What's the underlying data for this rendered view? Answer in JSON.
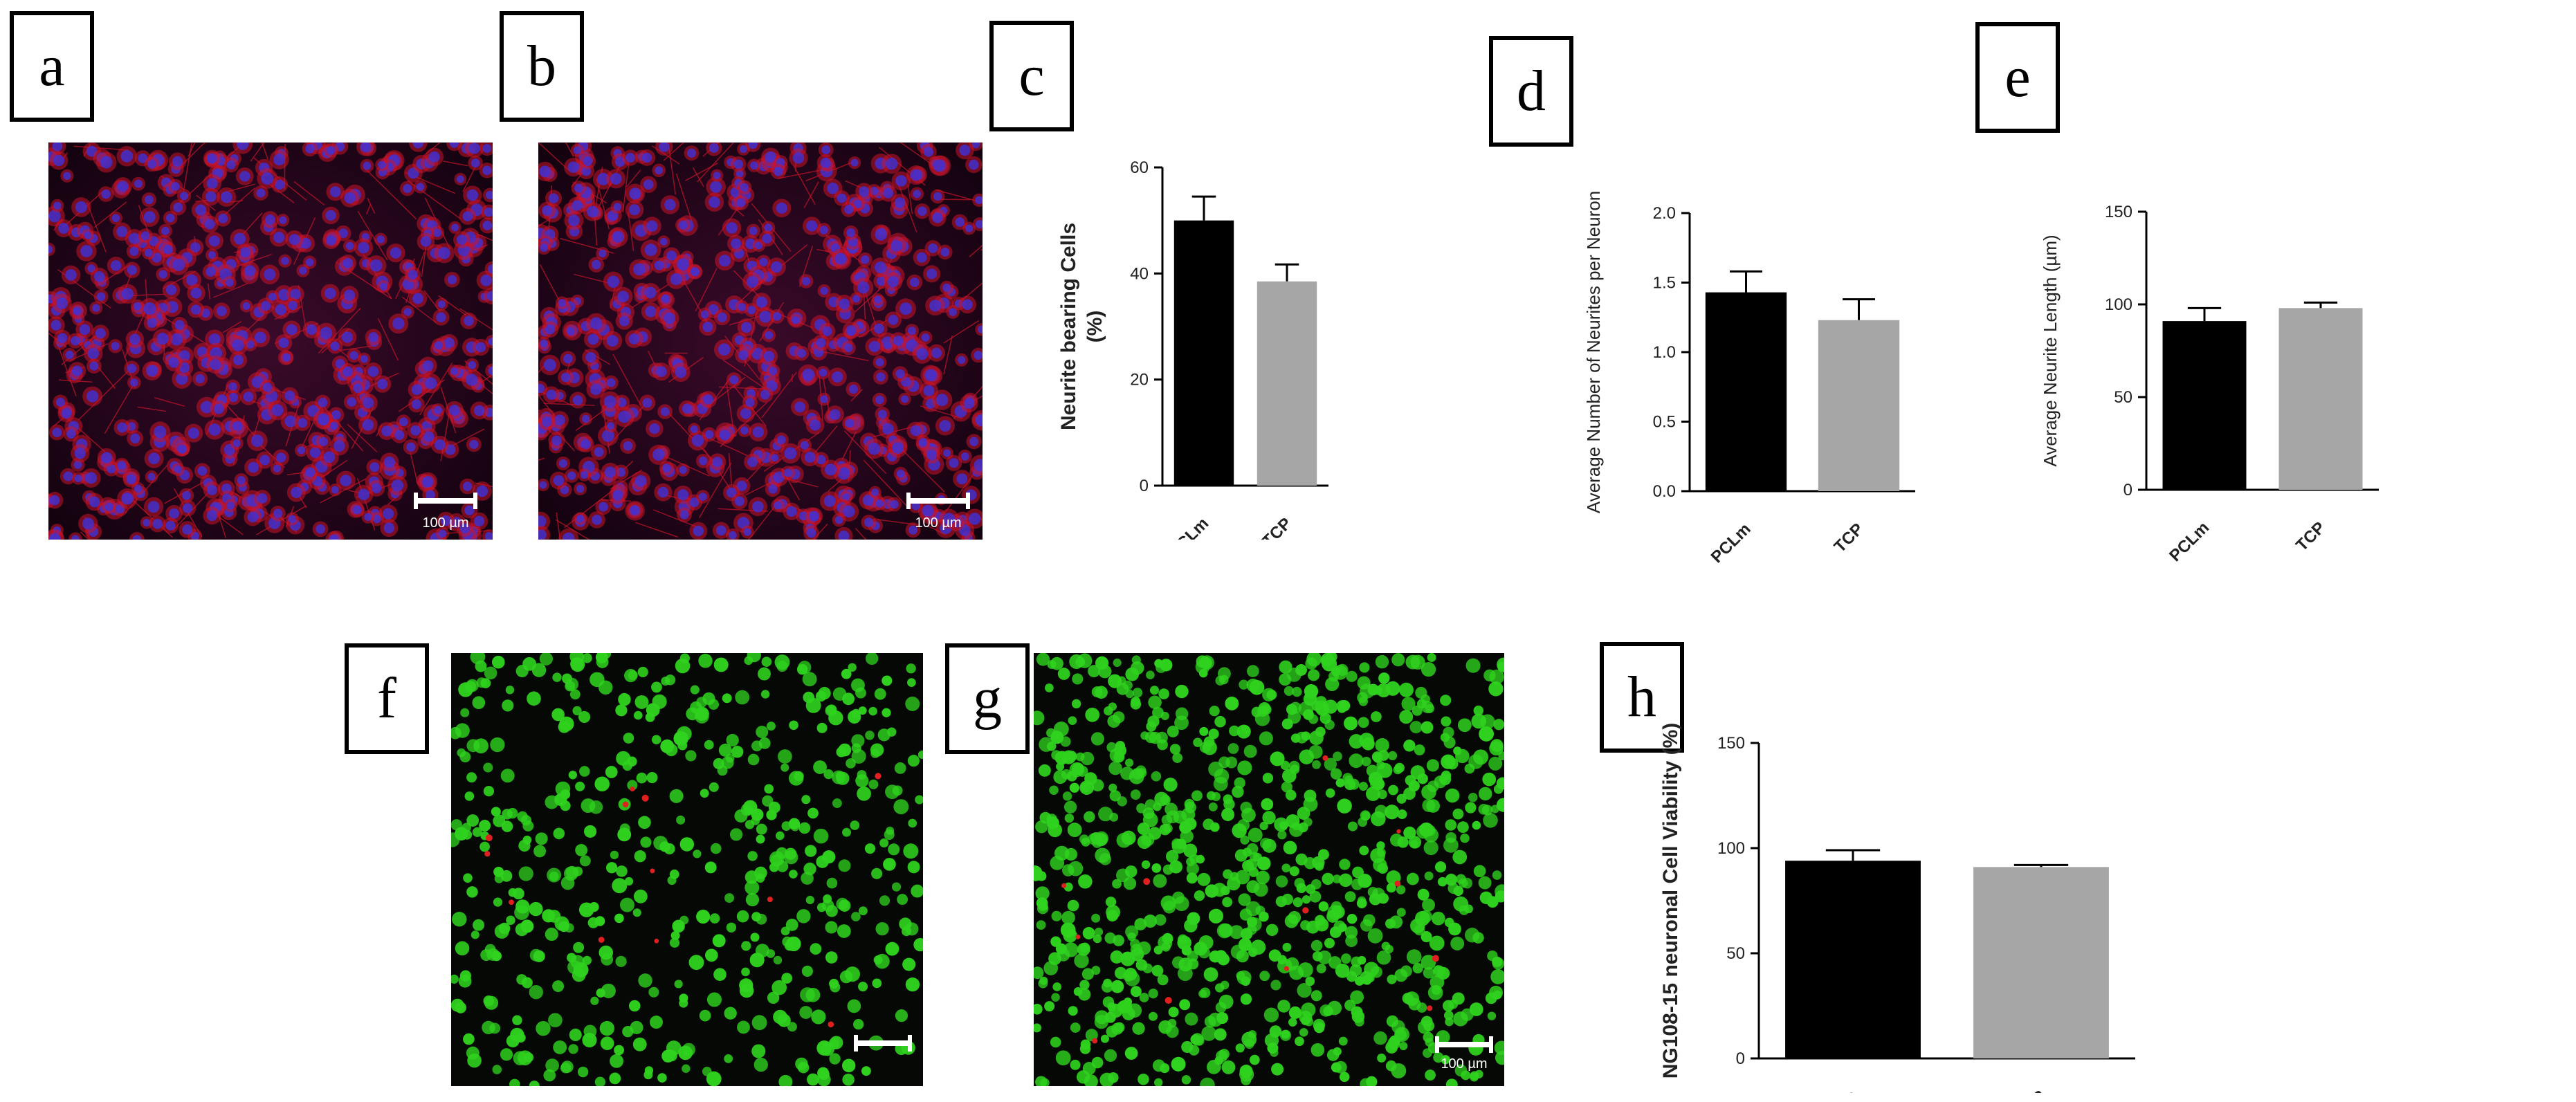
{
  "panels": {
    "a": {
      "label": "a",
      "scale_label": "100 µm"
    },
    "b": {
      "label": "b",
      "scale_label": "100 µm"
    },
    "c": {
      "label": "c"
    },
    "d": {
      "label": "d"
    },
    "e": {
      "label": "e"
    },
    "f": {
      "label": "f"
    },
    "g": {
      "label": "g",
      "scale_label": "100 µm"
    },
    "h": {
      "label": "h"
    }
  },
  "colors": {
    "pclm_bar": "#000000",
    "tcp_bar": "#a6a6a6",
    "nuclei": "#3c32d8",
    "cytoskeleton": "#c8142a",
    "live_cells": "#2fd21e",
    "dead_cells": "#e0201e"
  },
  "chart_data": [
    {
      "id": "c",
      "type": "bar",
      "categories": [
        "PCLm",
        "TCP"
      ],
      "values": [
        50,
        38.5
      ],
      "errors": [
        4.5,
        3.2
      ],
      "ylabel": "Neurite bearing Cells (%)",
      "ylabel_lines": [
        "Neurite bearing Cells",
        "(%)"
      ],
      "ylim": [
        0,
        60
      ],
      "yticks": [
        0,
        20,
        40,
        60
      ],
      "ytick_labels": [
        "0",
        "20",
        "40",
        "60"
      ]
    },
    {
      "id": "d",
      "type": "bar",
      "categories": [
        "PCLm",
        "TCP"
      ],
      "values": [
        1.43,
        1.23
      ],
      "errors": [
        0.15,
        0.15
      ],
      "ylabel": "Average Number of Neurites per Neuron",
      "ylim": [
        0,
        2.0
      ],
      "yticks": [
        0,
        0.5,
        1.0,
        1.5,
        2.0
      ],
      "ytick_labels": [
        "0.0",
        "0.5",
        "1.0",
        "1.5",
        "2.0"
      ]
    },
    {
      "id": "e",
      "type": "bar",
      "categories": [
        "PCLm",
        "TCP"
      ],
      "values": [
        91,
        98
      ],
      "errors": [
        7,
        3
      ],
      "ylabel": "Average Neurite Length (µm)",
      "ylim": [
        0,
        150
      ],
      "yticks": [
        0,
        50,
        100,
        150
      ],
      "ytick_labels": [
        "0",
        "50",
        "100",
        "150"
      ]
    },
    {
      "id": "h",
      "type": "bar",
      "categories": [
        "PCLm",
        "TCP"
      ],
      "values": [
        94,
        91
      ],
      "errors": [
        5,
        1
      ],
      "ylabel": "NG108-15 neuronal Cell Viability (%)",
      "ylim": [
        0,
        150
      ],
      "yticks": [
        0,
        50,
        100,
        150
      ],
      "ytick_labels": [
        "0",
        "50",
        "100",
        "150"
      ]
    }
  ]
}
